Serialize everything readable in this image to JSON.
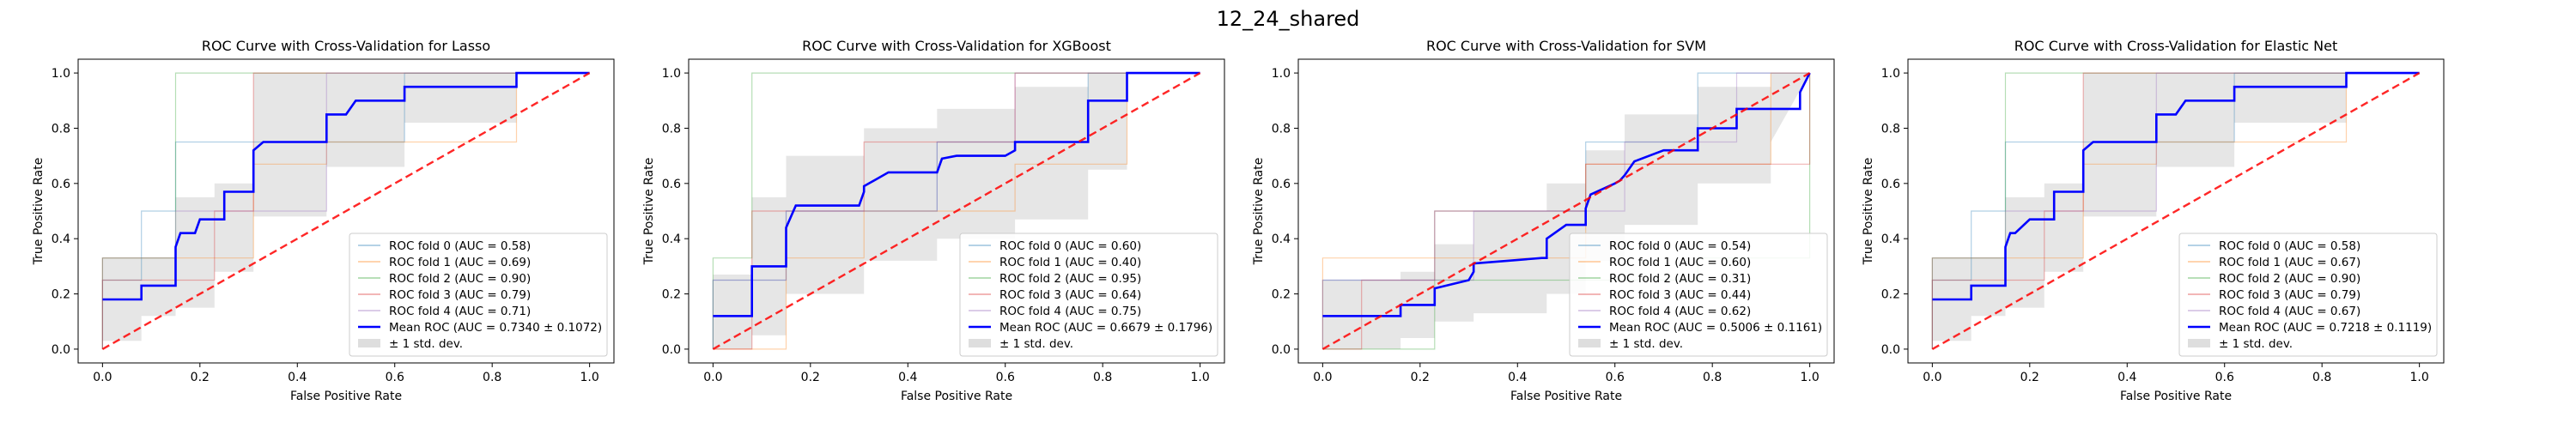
{
  "figure": {
    "title": "12_24_shared"
  },
  "colors": {
    "folds": [
      "#1f77b4",
      "#ff7f0e",
      "#2ca02c",
      "#d62728",
      "#9467bd"
    ],
    "mean": "#0000ff",
    "chance": "#ff0000",
    "band": "#c8c8c8",
    "axis": "#000000"
  },
  "chart_data": [
    {
      "type": "line",
      "title": "ROC Curve with Cross-Validation for Lasso",
      "xlabel": "False Positive Rate",
      "ylabel": "True Positive Rate",
      "xlim": [
        -0.05,
        1.05
      ],
      "ylim": [
        -0.05,
        1.05
      ],
      "xticks": [
        0.0,
        0.2,
        0.4,
        0.6,
        0.8,
        1.0
      ],
      "yticks": [
        0.0,
        0.2,
        0.4,
        0.6,
        0.8,
        1.0
      ],
      "tick_labels": [
        "0.0",
        "0.2",
        "0.4",
        "0.6",
        "0.8",
        "1.0"
      ],
      "legend_position": "lower-right",
      "series": [
        {
          "name": "ROC fold 0 (AUC = 0.58)",
          "x": [
            0,
            0,
            0.08,
            0.08,
            0.15,
            0.15,
            0.62,
            0.62,
            1
          ],
          "y": [
            0,
            0.25,
            0.25,
            0.5,
            0.5,
            0.75,
            0.75,
            1,
            1
          ]
        },
        {
          "name": "ROC fold 1 (AUC = 0.69)",
          "x": [
            0,
            0,
            0.31,
            0.31,
            0.46,
            0.46,
            0.85,
            0.85,
            1
          ],
          "y": [
            0,
            0.33,
            0.33,
            0.67,
            0.67,
            0.75,
            0.75,
            1,
            1
          ]
        },
        {
          "name": "ROC fold 2 (AUC = 0.90)",
          "x": [
            0,
            0,
            0.15,
            0.15,
            1
          ],
          "y": [
            0,
            0.33,
            0.33,
            1,
            1
          ]
        },
        {
          "name": "ROC fold 3 (AUC = 0.79)",
          "x": [
            0,
            0,
            0.23,
            0.23,
            0.31,
            0.31,
            1
          ],
          "y": [
            0,
            0.25,
            0.25,
            0.5,
            0.5,
            1,
            1
          ]
        },
        {
          "name": "ROC fold 4 (AUC = 0.71)",
          "x": [
            0,
            0,
            0.15,
            0.15,
            0.31,
            0.31,
            0.46,
            0.46,
            1
          ],
          "y": [
            0,
            0.33,
            0.33,
            0.5,
            0.5,
            0.5,
            0.5,
            1,
            1
          ]
        },
        {
          "name": "Mean ROC (AUC = 0.7340 ± 0.1072)",
          "x": [
            0,
            0.08,
            0.08,
            0.15,
            0.15,
            0.16,
            0.17,
            0.19,
            0.2,
            0.25,
            0.25,
            0.31,
            0.31,
            0.33,
            0.35,
            0.42,
            0.46,
            0.46,
            0.5,
            0.52,
            0.55,
            0.62,
            0.62,
            0.85,
            0.85,
            1
          ],
          "y": [
            0.18,
            0.18,
            0.23,
            0.23,
            0.37,
            0.42,
            0.42,
            0.42,
            0.47,
            0.47,
            0.57,
            0.57,
            0.72,
            0.75,
            0.75,
            0.75,
            0.75,
            0.85,
            0.85,
            0.9,
            0.9,
            0.9,
            0.95,
            0.95,
            1,
            1
          ]
        },
        {
          "name": "Chance",
          "x": [
            0,
            1
          ],
          "y": [
            0,
            1
          ]
        }
      ],
      "band": {
        "name": "± 1 std. dev.",
        "x": [
          0,
          0.08,
          0.08,
          0.15,
          0.15,
          0.23,
          0.23,
          0.31,
          0.31,
          0.46,
          0.46,
          0.62,
          0.62,
          0.85,
          0.85,
          1
        ],
        "upper": [
          0.33,
          0.33,
          0.33,
          0.33,
          0.55,
          0.55,
          0.6,
          0.6,
          1,
          1,
          1,
          1,
          1,
          1,
          1,
          1
        ],
        "lower": [
          0.03,
          0.03,
          0.12,
          0.12,
          0.15,
          0.15,
          0.28,
          0.28,
          0.48,
          0.48,
          0.66,
          0.66,
          0.82,
          0.82,
          1,
          1
        ]
      }
    },
    {
      "type": "line",
      "title": "ROC Curve with Cross-Validation for XGBoost",
      "xlabel": "False Positive Rate",
      "ylabel": "True Positive Rate",
      "xlim": [
        -0.05,
        1.05
      ],
      "ylim": [
        -0.05,
        1.05
      ],
      "xticks": [
        0.0,
        0.2,
        0.4,
        0.6,
        0.8,
        1.0
      ],
      "yticks": [
        0.0,
        0.2,
        0.4,
        0.6,
        0.8,
        1.0
      ],
      "tick_labels": [
        "0.0",
        "0.2",
        "0.4",
        "0.6",
        "0.8",
        "1.0"
      ],
      "legend_position": "lower-right",
      "series": [
        {
          "name": "ROC fold 0 (AUC = 0.60)",
          "x": [
            0,
            0,
            0.15,
            0.15,
            0.46,
            0.46,
            0.77,
            0.77,
            1
          ],
          "y": [
            0,
            0.25,
            0.25,
            0.5,
            0.5,
            0.75,
            0.75,
            1,
            1
          ]
        },
        {
          "name": "ROC fold 1 (AUC = 0.40)",
          "x": [
            0,
            0.15,
            0.15,
            0.31,
            0.31,
            0.62,
            0.62,
            0.85,
            0.85,
            1
          ],
          "y": [
            0,
            0,
            0.33,
            0.33,
            0.5,
            0.5,
            0.67,
            0.67,
            1,
            1
          ]
        },
        {
          "name": "ROC fold 2 (AUC = 0.95)",
          "x": [
            0,
            0,
            0.08,
            0.08,
            1
          ],
          "y": [
            0,
            0.33,
            0.33,
            1,
            1
          ]
        },
        {
          "name": "ROC fold 3 (AUC = 0.64)",
          "x": [
            0,
            0.08,
            0.08,
            0.31,
            0.31,
            0.62,
            0.62,
            1
          ],
          "y": [
            0,
            0,
            0.5,
            0.5,
            0.75,
            0.75,
            1,
            1
          ]
        },
        {
          "name": "ROC fold 4 (AUC = 0.75)",
          "x": [
            0,
            0,
            0.15,
            0.15,
            0.46,
            0.46,
            0.62,
            0.62,
            1
          ],
          "y": [
            0,
            0.25,
            0.25,
            0.5,
            0.5,
            0.75,
            0.75,
            1,
            1
          ]
        },
        {
          "name": "Mean ROC (AUC = 0.6679 ± 0.1796)",
          "x": [
            0,
            0.08,
            0.08,
            0.15,
            0.15,
            0.17,
            0.19,
            0.2,
            0.25,
            0.3,
            0.31,
            0.31,
            0.36,
            0.38,
            0.42,
            0.45,
            0.46,
            0.47,
            0.5,
            0.55,
            0.6,
            0.62,
            0.62,
            0.77,
            0.77,
            0.85,
            0.85,
            1
          ],
          "y": [
            0.12,
            0.12,
            0.3,
            0.3,
            0.44,
            0.52,
            0.52,
            0.52,
            0.52,
            0.52,
            0.57,
            0.59,
            0.64,
            0.64,
            0.64,
            0.64,
            0.64,
            0.69,
            0.7,
            0.7,
            0.7,
            0.72,
            0.75,
            0.75,
            0.9,
            0.9,
            1,
            1
          ]
        },
        {
          "name": "Chance",
          "x": [
            0,
            1
          ],
          "y": [
            0,
            1
          ]
        }
      ],
      "band": {
        "name": "± 1 std. dev.",
        "x": [
          0,
          0.08,
          0.08,
          0.15,
          0.15,
          0.31,
          0.31,
          0.46,
          0.46,
          0.62,
          0.62,
          0.77,
          0.77,
          0.85,
          0.85,
          1
        ],
        "upper": [
          0.27,
          0.27,
          0.55,
          0.55,
          0.7,
          0.7,
          0.8,
          0.8,
          0.87,
          0.87,
          0.95,
          0.95,
          1,
          1,
          1,
          1
        ],
        "lower": [
          0,
          0,
          0.05,
          0.05,
          0.2,
          0.2,
          0.32,
          0.32,
          0.4,
          0.4,
          0.47,
          0.47,
          0.65,
          0.65,
          1,
          1
        ]
      }
    },
    {
      "type": "line",
      "title": "ROC Curve with Cross-Validation for SVM",
      "xlabel": "False Positive Rate",
      "ylabel": "True Positive Rate",
      "xlim": [
        -0.05,
        1.05
      ],
      "ylim": [
        -0.05,
        1.05
      ],
      "xticks": [
        0.0,
        0.2,
        0.4,
        0.6,
        0.8,
        1.0
      ],
      "yticks": [
        0.0,
        0.2,
        0.4,
        0.6,
        0.8,
        1.0
      ],
      "tick_labels": [
        "0.0",
        "0.2",
        "0.4",
        "0.6",
        "0.8",
        "1.0"
      ],
      "legend_position": "lower-right",
      "series": [
        {
          "name": "ROC fold 0 (AUC = 0.54)",
          "x": [
            0,
            0,
            0.23,
            0.23,
            0.54,
            0.54,
            0.77,
            0.77,
            1
          ],
          "y": [
            0,
            0.25,
            0.25,
            0.5,
            0.5,
            0.75,
            0.75,
            1,
            1
          ]
        },
        {
          "name": "ROC fold 1 (AUC = 0.60)",
          "x": [
            0,
            0,
            0.23,
            0.23,
            0.54,
            0.54,
            0.92,
            0.92,
            1
          ],
          "y": [
            0,
            0.33,
            0.33,
            0.33,
            0.33,
            0.67,
            0.67,
            1,
            1
          ]
        },
        {
          "name": "ROC fold 2 (AUC = 0.31)",
          "x": [
            0,
            0.23,
            0.23,
            0.54,
            0.54,
            0.77,
            0.77,
            1,
            1
          ],
          "y": [
            0,
            0,
            0.25,
            0.25,
            0.25,
            0.25,
            0.33,
            0.33,
            1
          ]
        },
        {
          "name": "ROC fold 3 (AUC = 0.44)",
          "x": [
            0,
            0.08,
            0.08,
            0.23,
            0.23,
            0.54,
            0.54,
            1,
            1
          ],
          "y": [
            0,
            0,
            0.25,
            0.25,
            0.5,
            0.5,
            0.67,
            0.67,
            1
          ]
        },
        {
          "name": "ROC fold 4 (AUC = 0.62)",
          "x": [
            0,
            0,
            0.31,
            0.31,
            0.62,
            0.62,
            0.85,
            0.85,
            1
          ],
          "y": [
            0,
            0.25,
            0.25,
            0.5,
            0.5,
            0.75,
            0.75,
            1,
            1
          ]
        },
        {
          "name": "Mean ROC (AUC = 0.5006 ± 0.1161)",
          "x": [
            0,
            0.16,
            0.16,
            0.23,
            0.23,
            0.3,
            0.31,
            0.31,
            0.38,
            0.45,
            0.46,
            0.46,
            0.5,
            0.54,
            0.54,
            0.55,
            0.6,
            0.61,
            0.62,
            0.64,
            0.7,
            0.77,
            0.77,
            0.85,
            0.85,
            0.98,
            0.98,
            1
          ],
          "y": [
            0.12,
            0.12,
            0.16,
            0.16,
            0.22,
            0.25,
            0.28,
            0.31,
            0.32,
            0.33,
            0.33,
            0.4,
            0.45,
            0.45,
            0.51,
            0.56,
            0.6,
            0.61,
            0.63,
            0.68,
            0.72,
            0.72,
            0.8,
            0.8,
            0.87,
            0.87,
            0.93,
            1
          ]
        },
        {
          "name": "Chance",
          "x": [
            0,
            1
          ],
          "y": [
            0,
            1
          ]
        }
      ],
      "band": {
        "name": "± 1 std. dev.",
        "x": [
          0,
          0.16,
          0.16,
          0.23,
          0.23,
          0.31,
          0.31,
          0.46,
          0.46,
          0.54,
          0.54,
          0.62,
          0.62,
          0.77,
          0.77,
          0.92,
          0.92,
          1
        ],
        "upper": [
          0.25,
          0.25,
          0.28,
          0.28,
          0.38,
          0.38,
          0.5,
          0.5,
          0.6,
          0.6,
          0.72,
          0.72,
          0.85,
          0.85,
          0.95,
          0.95,
          1,
          1
        ],
        "lower": [
          0,
          0,
          0.04,
          0.04,
          0.1,
          0.1,
          0.13,
          0.13,
          0.2,
          0.2,
          0.32,
          0.32,
          0.45,
          0.45,
          0.6,
          0.6,
          0.75,
          1
        ]
      }
    },
    {
      "type": "line",
      "title": "ROC Curve with Cross-Validation for Elastic Net",
      "xlabel": "False Positive Rate",
      "ylabel": "True Positive Rate",
      "xlim": [
        -0.05,
        1.05
      ],
      "ylim": [
        -0.05,
        1.05
      ],
      "xticks": [
        0.0,
        0.2,
        0.4,
        0.6,
        0.8,
        1.0
      ],
      "yticks": [
        0.0,
        0.2,
        0.4,
        0.6,
        0.8,
        1.0
      ],
      "tick_labels": [
        "0.0",
        "0.2",
        "0.4",
        "0.6",
        "0.8",
        "1.0"
      ],
      "legend_position": "lower-right",
      "series": [
        {
          "name": "ROC fold 0 (AUC = 0.58)",
          "x": [
            0,
            0,
            0.08,
            0.08,
            0.15,
            0.15,
            0.62,
            0.62,
            1
          ],
          "y": [
            0,
            0.25,
            0.25,
            0.5,
            0.5,
            0.75,
            0.75,
            1,
            1
          ]
        },
        {
          "name": "ROC fold 1 (AUC = 0.67)",
          "x": [
            0,
            0,
            0.31,
            0.31,
            0.46,
            0.46,
            0.85,
            0.85,
            1
          ],
          "y": [
            0,
            0.33,
            0.33,
            0.67,
            0.67,
            0.75,
            0.75,
            1,
            1
          ]
        },
        {
          "name": "ROC fold 2 (AUC = 0.90)",
          "x": [
            0,
            0,
            0.15,
            0.15,
            1
          ],
          "y": [
            0,
            0.33,
            0.33,
            1,
            1
          ]
        },
        {
          "name": "ROC fold 3 (AUC = 0.79)",
          "x": [
            0,
            0,
            0.23,
            0.23,
            0.31,
            0.31,
            1
          ],
          "y": [
            0,
            0.25,
            0.25,
            0.5,
            0.5,
            1,
            1
          ]
        },
        {
          "name": "ROC fold 4 (AUC = 0.67)",
          "x": [
            0,
            0,
            0.15,
            0.15,
            0.31,
            0.31,
            0.46,
            0.46,
            1
          ],
          "y": [
            0,
            0.33,
            0.33,
            0.5,
            0.5,
            0.5,
            0.5,
            1,
            1
          ]
        },
        {
          "name": "Mean ROC (AUC = 0.7218 ± 0.1119)",
          "x": [
            0,
            0.08,
            0.08,
            0.15,
            0.15,
            0.16,
            0.17,
            0.2,
            0.25,
            0.25,
            0.31,
            0.31,
            0.33,
            0.42,
            0.46,
            0.46,
            0.5,
            0.52,
            0.62,
            0.62,
            0.85,
            0.85,
            1
          ],
          "y": [
            0.18,
            0.18,
            0.23,
            0.23,
            0.37,
            0.42,
            0.42,
            0.47,
            0.47,
            0.57,
            0.57,
            0.72,
            0.75,
            0.75,
            0.75,
            0.85,
            0.85,
            0.9,
            0.9,
            0.95,
            0.95,
            1,
            1
          ]
        },
        {
          "name": "Chance",
          "x": [
            0,
            1
          ],
          "y": [
            0,
            1
          ]
        }
      ],
      "band": {
        "name": "± 1 std. dev.",
        "x": [
          0,
          0.08,
          0.08,
          0.15,
          0.15,
          0.23,
          0.23,
          0.31,
          0.31,
          0.46,
          0.46,
          0.62,
          0.62,
          0.85,
          0.85,
          1
        ],
        "upper": [
          0.33,
          0.33,
          0.33,
          0.33,
          0.55,
          0.55,
          0.6,
          0.6,
          1,
          1,
          1,
          1,
          1,
          1,
          1,
          1
        ],
        "lower": [
          0.03,
          0.03,
          0.12,
          0.12,
          0.15,
          0.15,
          0.28,
          0.28,
          0.48,
          0.48,
          0.66,
          0.66,
          0.82,
          0.82,
          1,
          1
        ]
      }
    }
  ]
}
